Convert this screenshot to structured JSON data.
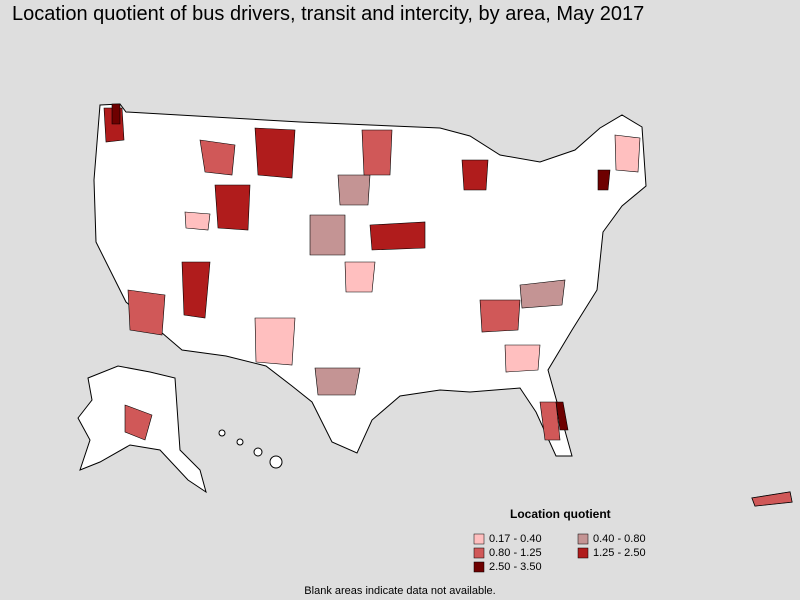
{
  "title": "Location quotient of bus drivers, transit and intercity, by area, May 2017",
  "legend": {
    "title": "Location quotient",
    "items": [
      {
        "label": "0.17 - 0.40",
        "color": "#ffbfbf"
      },
      {
        "label": "0.40 - 0.80",
        "color": "#c49494"
      },
      {
        "label": "0.80 - 1.25",
        "color": "#d05858"
      },
      {
        "label": "1.25 - 2.50",
        "color": "#b01c1c"
      },
      {
        "label": "2.50 - 3.50",
        "color": "#6e0000"
      }
    ]
  },
  "note": "Blank areas indicate data not available."
}
